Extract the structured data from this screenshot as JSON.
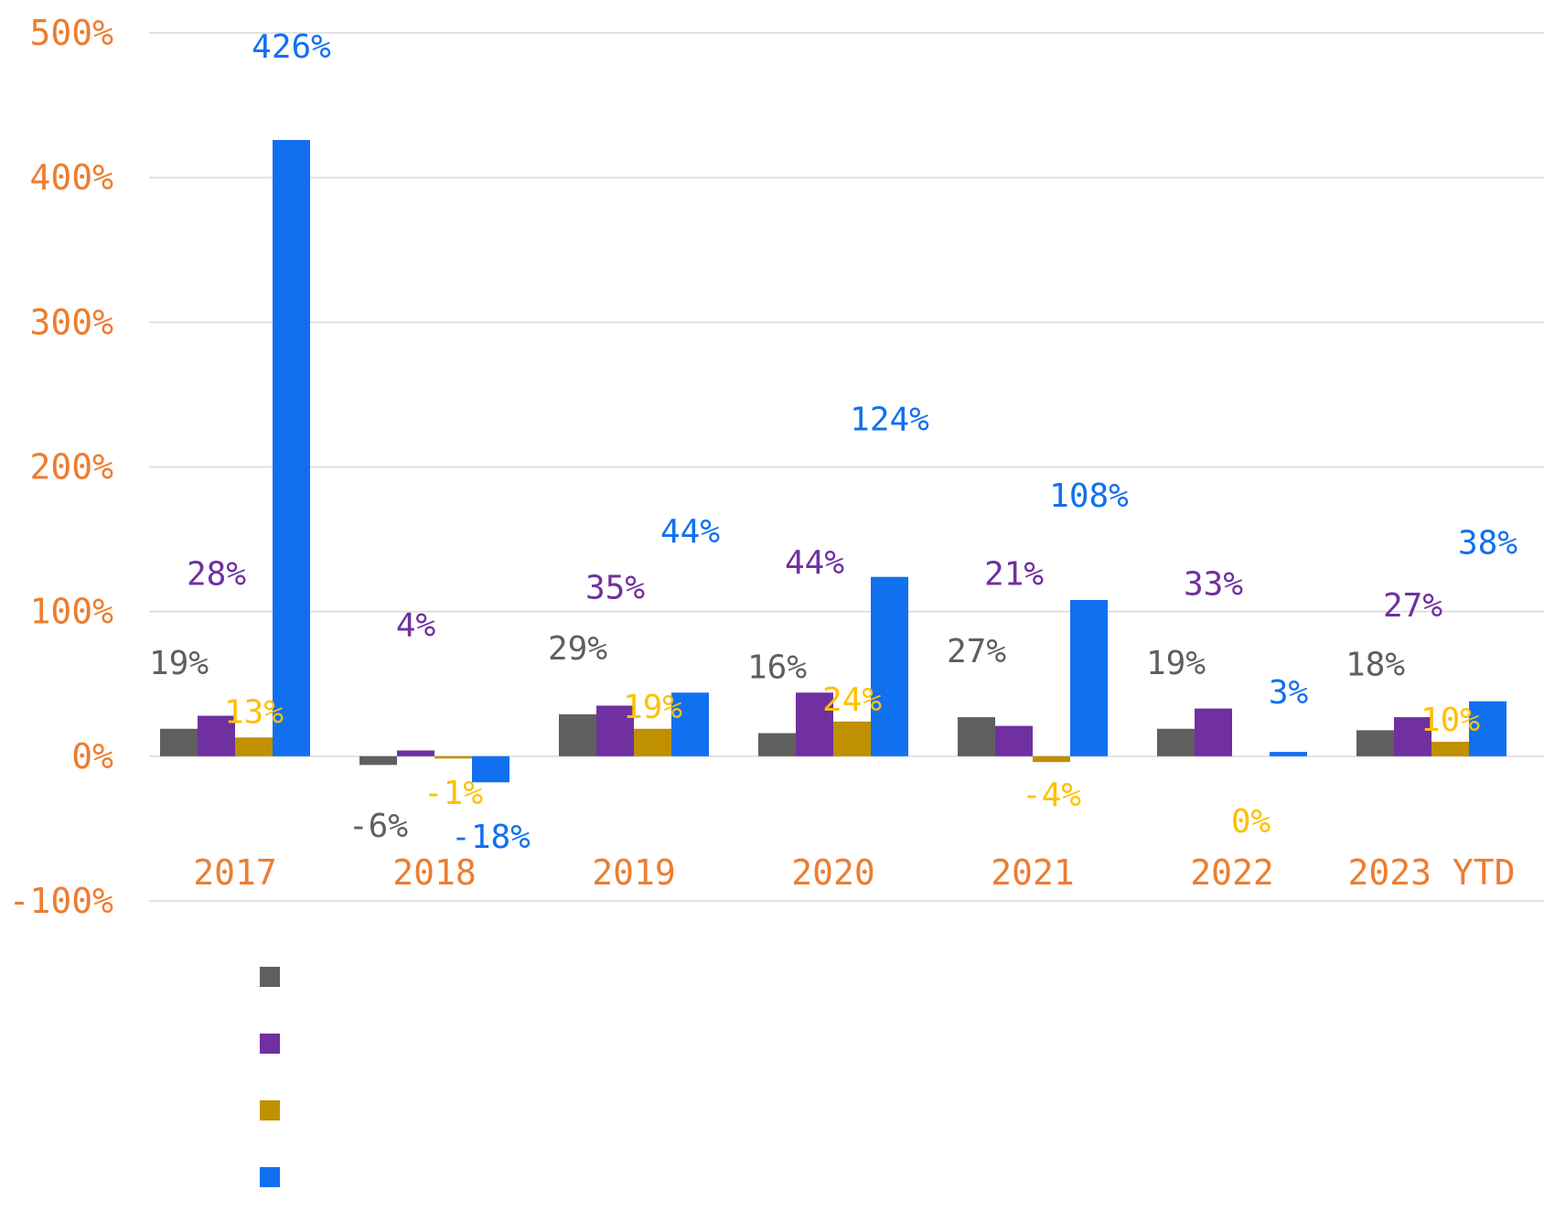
{
  "chart_data": {
    "type": "bar",
    "categories": [
      "2017",
      "2018",
      "2019",
      "2020",
      "2021",
      "2022",
      "2023 YTD"
    ],
    "series": [
      {
        "values": [
          19,
          -6,
          29,
          16,
          27,
          19,
          18
        ],
        "color": "#5f5f5f"
      },
      {
        "values": [
          28,
          4,
          35,
          44,
          21,
          33,
          27
        ],
        "color": "#7030a0"
      },
      {
        "values": [
          13,
          -1,
          19,
          24,
          -4,
          0,
          10
        ],
        "color": "#bf9000"
      },
      {
        "values": [
          426,
          -18,
          44,
          124,
          108,
          3,
          38
        ],
        "color": "#1170f0"
      }
    ],
    "data_labels": [
      [
        "19%",
        "-6%",
        "29%",
        "16%",
        "27%",
        "19%",
        "18%"
      ],
      [
        "28%",
        "4%",
        "35%",
        "44%",
        "21%",
        "33%",
        "27%"
      ],
      [
        "13%",
        "-1%",
        "19%",
        "24%",
        "-4%",
        "0%",
        "10%"
      ],
      [
        "426%",
        "-18%",
        "44%",
        "124%",
        "108%",
        "3%",
        "38%"
      ]
    ],
    "label_colors": [
      "#5f5f5f",
      "#7030a0",
      "#ffc000",
      "#1170f0"
    ],
    "y_ticks": [
      500,
      400,
      300,
      200,
      100,
      0,
      -100
    ],
    "y_tick_labels": [
      "500%",
      "400%",
      "300%",
      "200%",
      "100%",
      "0%",
      "-100%"
    ],
    "ylim": [
      -100,
      500
    ],
    "grid": true,
    "legend_position": "bottom-left",
    "axis_label_color": "#ed7d31",
    "gridline_color": "#d9d9d9"
  }
}
